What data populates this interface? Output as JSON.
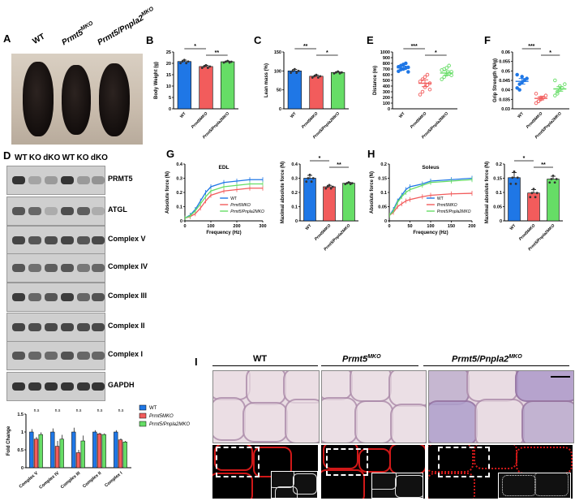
{
  "panels": {
    "A": "A",
    "B": "B",
    "C": "C",
    "D": "D",
    "E": "E",
    "F": "F",
    "G": "G",
    "H": "H",
    "I": "I"
  },
  "genotypes": {
    "wt": "WT",
    "ko_base": "Prmt5",
    "ko_sup": "MKO",
    "dko_base": "Prmt5/Pnpla2",
    "dko_sup": "MKO"
  },
  "panel_d": {
    "lane_labels": [
      "WT",
      "KO",
      "dKO",
      "WT",
      "KO",
      "dKO"
    ],
    "blots": [
      "PRMT5",
      "ATGL",
      "Complex V",
      "Complex IV",
      "Complex III",
      "Complex II",
      "Complex I",
      "GAPDH"
    ]
  },
  "colors": {
    "wt": "#1f77e6",
    "ko": "#f25c5c",
    "dko": "#66dd66"
  },
  "chart_data": [
    {
      "id": "B",
      "type": "bar",
      "ylabel": "Body Weight (g)",
      "ylim": [
        0,
        25
      ],
      "yticks": [
        0,
        5,
        10,
        15,
        20,
        25
      ],
      "categories": [
        "WT",
        "Prmt5MKO",
        "Prmt5/Pnpla2MKO"
      ],
      "values": [
        20.8,
        18.6,
        20.7
      ],
      "errors": [
        0.6,
        0.5,
        0.3
      ],
      "significance": [
        {
          "pair": [
            0,
            1
          ],
          "label": "*"
        },
        {
          "pair": [
            1,
            2
          ],
          "label": "**"
        }
      ]
    },
    {
      "id": "C",
      "type": "bar",
      "ylabel": "Lean mass (%)",
      "ylim": [
        0,
        150
      ],
      "yticks": [
        0,
        50,
        100,
        150
      ],
      "categories": [
        "WT",
        "Prmt5MKO",
        "Prmt5/Pnpla2MKO"
      ],
      "values": [
        100,
        86,
        96
      ],
      "errors": [
        4,
        3,
        2
      ],
      "significance": [
        {
          "pair": [
            0,
            1
          ],
          "label": "**"
        },
        {
          "pair": [
            1,
            2
          ],
          "label": "*"
        }
      ]
    },
    {
      "id": "E",
      "type": "scatter",
      "ylabel": "Distance (m)",
      "ylim": [
        0,
        1000
      ],
      "yticks": [
        0,
        100,
        200,
        300,
        400,
        500,
        600,
        700,
        800,
        900,
        1000
      ],
      "categories": [
        "WT",
        "Prmt5MKO",
        "Prmt5/Pnpla2MKO"
      ],
      "means": [
        720,
        450,
        630
      ],
      "errors": [
        30,
        60,
        40
      ],
      "points": [
        [
          660,
          690,
          700,
          720,
          730,
          740,
          760,
          780,
          800,
          650
        ],
        [
          250,
          300,
          380,
          420,
          450,
          480,
          520,
          560,
          600,
          340
        ],
        [
          520,
          560,
          600,
          620,
          650,
          680,
          700,
          720,
          760,
          590
        ]
      ],
      "significance": [
        {
          "pair": [
            0,
            1
          ],
          "label": "***"
        },
        {
          "pair": [
            1,
            2
          ],
          "label": "*"
        }
      ]
    },
    {
      "id": "F",
      "type": "scatter",
      "ylabel": "Grip Strength (N/g)",
      "ylim": [
        0.03,
        0.06
      ],
      "yticks": [
        0.03,
        0.035,
        0.04,
        0.045,
        0.05,
        0.055,
        0.06
      ],
      "categories": [
        "WT",
        "Prmt5MKO",
        "Prmt5/Pnpla2MKO"
      ],
      "means": [
        0.0445,
        0.0355,
        0.0405
      ],
      "errors": [
        0.0015,
        0.0008,
        0.0012
      ],
      "points": [
        [
          0.041,
          0.043,
          0.044,
          0.045,
          0.046,
          0.048,
          0.04,
          0.047
        ],
        [
          0.033,
          0.034,
          0.035,
          0.036,
          0.037,
          0.038,
          0.034,
          0.036
        ],
        [
          0.037,
          0.038,
          0.04,
          0.041,
          0.043,
          0.045,
          0.039,
          0.042
        ]
      ],
      "significance": [
        {
          "pair": [
            0,
            1
          ],
          "label": "***"
        },
        {
          "pair": [
            1,
            2
          ],
          "label": "*"
        }
      ]
    },
    {
      "id": "G_curve",
      "type": "line",
      "title": "EDL",
      "xlabel": "Frequency (Hz)",
      "ylabel": "Absolute force (N)",
      "xlim": [
        0,
        300
      ],
      "ylim": [
        0,
        0.4
      ],
      "xticks": [
        0,
        100,
        200,
        300
      ],
      "yticks": [
        0,
        0.1,
        0.2,
        0.3,
        0.4
      ],
      "x": [
        1,
        20,
        40,
        60,
        80,
        100,
        150,
        200,
        250,
        300
      ],
      "series": [
        {
          "name": "WT",
          "values": [
            0.02,
            0.04,
            0.08,
            0.14,
            0.2,
            0.24,
            0.27,
            0.28,
            0.29,
            0.29
          ]
        },
        {
          "name": "Prmt5MKO",
          "values": [
            0.02,
            0.03,
            0.05,
            0.09,
            0.14,
            0.18,
            0.21,
            0.22,
            0.23,
            0.23
          ]
        },
        {
          "name": "Prmt5/Pnpla2MKO",
          "values": [
            0.02,
            0.035,
            0.07,
            0.12,
            0.17,
            0.21,
            0.24,
            0.25,
            0.26,
            0.26
          ]
        }
      ]
    },
    {
      "id": "G_bar",
      "type": "bar",
      "ylabel": "Maximal absolute force (N)",
      "ylim": [
        0,
        0.4
      ],
      "yticks": [
        0,
        0.1,
        0.2,
        0.3,
        0.4
      ],
      "categories": [
        "WT",
        "Prmt5MKO",
        "Prmt5/Pnpla2MKO"
      ],
      "values": [
        0.3,
        0.24,
        0.265
      ],
      "errors": [
        0.02,
        0.01,
        0.005
      ],
      "significance": [
        {
          "pair": [
            0,
            1
          ],
          "label": "*"
        },
        {
          "pair": [
            1,
            2
          ],
          "label": "**"
        }
      ]
    },
    {
      "id": "H_curve",
      "type": "line",
      "title": "Soleus",
      "xlabel": "Frequency (Hz)",
      "ylabel": "Absolute force (N)",
      "xlim": [
        0,
        200
      ],
      "ylim": [
        0,
        0.2
      ],
      "xticks": [
        0,
        50,
        100,
        150,
        200
      ],
      "yticks": [
        0,
        0.05,
        0.1,
        0.15,
        0.2
      ],
      "x": [
        1,
        10,
        20,
        30,
        40,
        50,
        80,
        100,
        150,
        200
      ],
      "series": [
        {
          "name": "WT",
          "values": [
            0.02,
            0.04,
            0.07,
            0.09,
            0.11,
            0.12,
            0.13,
            0.14,
            0.145,
            0.15
          ]
        },
        {
          "name": "Prmt5MKO",
          "values": [
            0.02,
            0.03,
            0.05,
            0.06,
            0.07,
            0.075,
            0.085,
            0.09,
            0.095,
            0.097
          ]
        },
        {
          "name": "Prmt5/Pnpla2MKO",
          "values": [
            0.02,
            0.035,
            0.065,
            0.085,
            0.1,
            0.11,
            0.125,
            0.135,
            0.14,
            0.145
          ]
        }
      ]
    },
    {
      "id": "H_bar",
      "type": "bar",
      "ylabel": "Maximal absolute force (N)",
      "ylim": [
        0,
        0.2
      ],
      "yticks": [
        0,
        0.05,
        0.1,
        0.15,
        0.2
      ],
      "categories": [
        "WT",
        "Prmt5MKO",
        "Prmt5/Pnpla2MKO"
      ],
      "values": [
        0.152,
        0.098,
        0.147
      ],
      "errors": [
        0.018,
        0.012,
        0.01
      ],
      "significance": [
        {
          "pair": [
            0,
            1
          ],
          "label": "*"
        },
        {
          "pair": [
            1,
            2
          ],
          "label": "**"
        }
      ]
    },
    {
      "id": "D_quant",
      "type": "bar",
      "ylabel": "Fold Change",
      "ylim": [
        0,
        1.5
      ],
      "yticks": [
        0,
        0.5,
        1.0,
        1.5
      ],
      "categories": [
        "Complex V",
        "Complex IV",
        "Complex III",
        "Complex II",
        "Complex I"
      ],
      "series": [
        {
          "name": "WT",
          "values": [
            1.0,
            1.0,
            1.0,
            1.0,
            1.0
          ],
          "errors": [
            0.08,
            0.1,
            0.12,
            0.05,
            0.05
          ]
        },
        {
          "name": "Prmt5MKO",
          "values": [
            0.8,
            0.6,
            0.42,
            0.95,
            0.78
          ],
          "errors": [
            0.06,
            0.15,
            0.08,
            0.03,
            0.04
          ]
        },
        {
          "name": "Prmt5/Pnpla2MKO",
          "values": [
            0.93,
            0.8,
            0.75,
            0.93,
            0.72
          ],
          "errors": [
            0.06,
            0.12,
            0.15,
            0.03,
            0.03
          ]
        }
      ],
      "significance": [
        "n.s",
        "*",
        "n.s",
        "n.s",
        "n.s",
        "*",
        "n.s",
        "n.s",
        "n.s",
        "n.s",
        "*",
        "*"
      ]
    }
  ],
  "panel_i": {
    "columns": [
      "WT",
      "Prmt5MKO",
      "Prmt5/Pnpla2MKO"
    ]
  }
}
